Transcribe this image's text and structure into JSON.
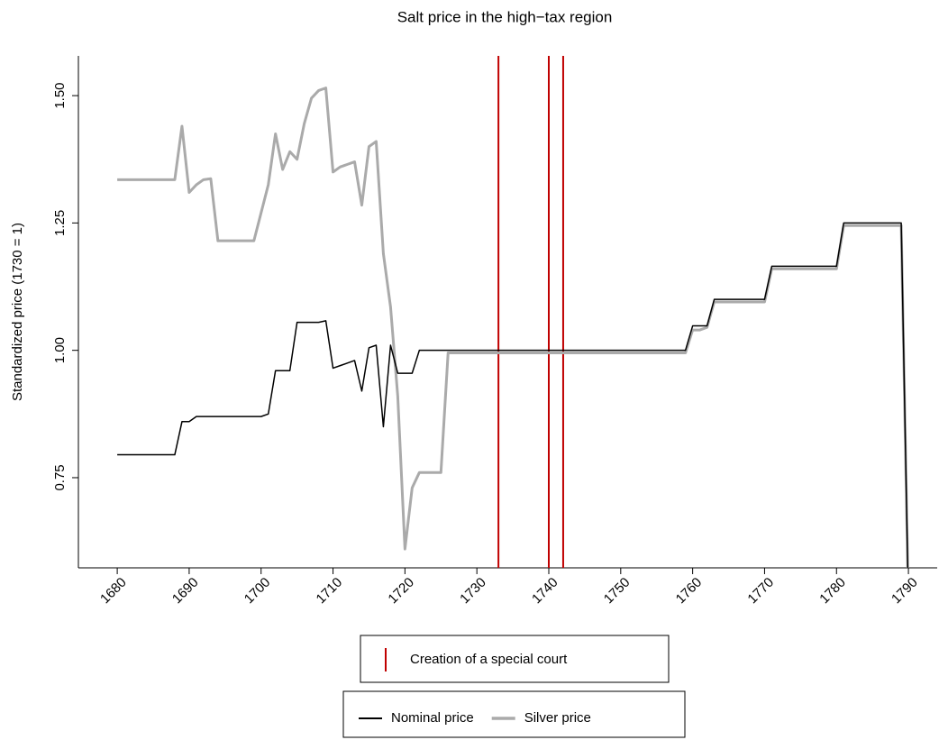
{
  "chart_data": {
    "type": "line",
    "title": "Salt price in the high−tax region",
    "y_label": "Standardized price (1730 = 1)",
    "x": [
      1680,
      1681,
      1682,
      1683,
      1684,
      1685,
      1686,
      1687,
      1688,
      1689,
      1690,
      1691,
      1692,
      1693,
      1694,
      1695,
      1696,
      1697,
      1698,
      1699,
      1700,
      1701,
      1702,
      1703,
      1704,
      1705,
      1706,
      1707,
      1708,
      1709,
      1710,
      1711,
      1712,
      1713,
      1714,
      1715,
      1716,
      1717,
      1718,
      1719,
      1720,
      1721,
      1722,
      1723,
      1724,
      1725,
      1726,
      1727,
      1728,
      1729,
      1730,
      1731,
      1732,
      1733,
      1734,
      1735,
      1736,
      1737,
      1738,
      1739,
      1740,
      1741,
      1742,
      1743,
      1744,
      1745,
      1746,
      1747,
      1748,
      1749,
      1750,
      1751,
      1752,
      1753,
      1754,
      1755,
      1756,
      1757,
      1758,
      1759,
      1760,
      1761,
      1762,
      1763,
      1764,
      1765,
      1766,
      1767,
      1768,
      1769,
      1770,
      1771,
      1772,
      1773,
      1774,
      1775,
      1776,
      1777,
      1778,
      1779,
      1780,
      1781,
      1782,
      1783,
      1784,
      1785,
      1786,
      1787,
      1788,
      1789,
      1790
    ],
    "series": [
      {
        "name": "Silver price",
        "color": "#aaaaaa",
        "width": 3,
        "values": [
          1.335,
          1.335,
          1.335,
          1.335,
          1.335,
          1.335,
          1.335,
          1.335,
          1.335,
          1.44,
          1.31,
          1.325,
          1.335,
          1.337,
          1.215,
          1.215,
          1.215,
          1.215,
          1.215,
          1.215,
          1.27,
          1.325,
          1.425,
          1.355,
          1.39,
          1.375,
          1.445,
          1.495,
          1.51,
          1.515,
          1.35,
          1.36,
          1.365,
          1.37,
          1.285,
          1.4,
          1.41,
          1.19,
          1.085,
          0.91,
          0.61,
          0.73,
          0.76,
          0.76,
          0.76,
          0.76,
          0.995,
          0.995,
          0.995,
          0.995,
          0.995,
          0.995,
          0.995,
          0.995,
          0.995,
          0.995,
          0.995,
          0.995,
          0.995,
          0.995,
          0.995,
          0.995,
          0.995,
          0.995,
          0.995,
          0.995,
          0.995,
          0.995,
          0.995,
          0.995,
          0.995,
          0.995,
          0.995,
          0.995,
          0.995,
          0.995,
          0.995,
          0.995,
          0.995,
          0.995,
          1.04,
          1.04,
          1.045,
          1.095,
          1.095,
          1.095,
          1.095,
          1.095,
          1.095,
          1.095,
          1.095,
          1.16,
          1.16,
          1.16,
          1.16,
          1.16,
          1.16,
          1.16,
          1.16,
          1.16,
          1.16,
          1.245,
          1.245,
          1.245,
          1.245,
          1.245,
          1.245,
          1.245,
          1.245,
          1.245,
          0.5
        ]
      },
      {
        "name": "Nominal price",
        "color": "#000000",
        "width": 1.5,
        "values": [
          0.795,
          0.795,
          0.795,
          0.795,
          0.795,
          0.795,
          0.795,
          0.795,
          0.795,
          0.86,
          0.86,
          0.87,
          0.87,
          0.87,
          0.87,
          0.87,
          0.87,
          0.87,
          0.87,
          0.87,
          0.87,
          0.875,
          0.96,
          0.96,
          0.96,
          1.055,
          1.055,
          1.055,
          1.055,
          1.058,
          0.965,
          0.97,
          0.975,
          0.98,
          0.92,
          1.005,
          1.01,
          0.85,
          1.01,
          0.955,
          0.955,
          0.955,
          1.0,
          1.0,
          1.0,
          1.0,
          1.0,
          1.0,
          1.0,
          1.0,
          1.0,
          1.0,
          1.0,
          1.0,
          1.0,
          1.0,
          1.0,
          1.0,
          1.0,
          1.0,
          1.0,
          1.0,
          1.0,
          1.0,
          1.0,
          1.0,
          1.0,
          1.0,
          1.0,
          1.0,
          1.0,
          1.0,
          1.0,
          1.0,
          1.0,
          1.0,
          1.0,
          1.0,
          1.0,
          1.0,
          1.048,
          1.048,
          1.048,
          1.1,
          1.1,
          1.1,
          1.1,
          1.1,
          1.1,
          1.1,
          1.1,
          1.165,
          1.165,
          1.165,
          1.165,
          1.165,
          1.165,
          1.165,
          1.165,
          1.165,
          1.165,
          1.25,
          1.25,
          1.25,
          1.25,
          1.25,
          1.25,
          1.25,
          1.25,
          1.25,
          0.5
        ]
      }
    ],
    "events": {
      "name": "Creation of a special court",
      "color": "#c00000",
      "x": [
        1733,
        1740,
        1742
      ]
    },
    "xlim": [
      1674.6,
      1794
    ],
    "xticks": [
      1680,
      1690,
      1700,
      1710,
      1720,
      1730,
      1740,
      1750,
      1760,
      1770,
      1780,
      1790
    ],
    "ylim": [
      0.573,
      1.578
    ],
    "yticks": [
      0.75,
      {
        "value": 1.0,
        "label": "1.00"
      },
      1.25,
      {
        "value": 1.5,
        "label": "1.50"
      }
    ]
  }
}
